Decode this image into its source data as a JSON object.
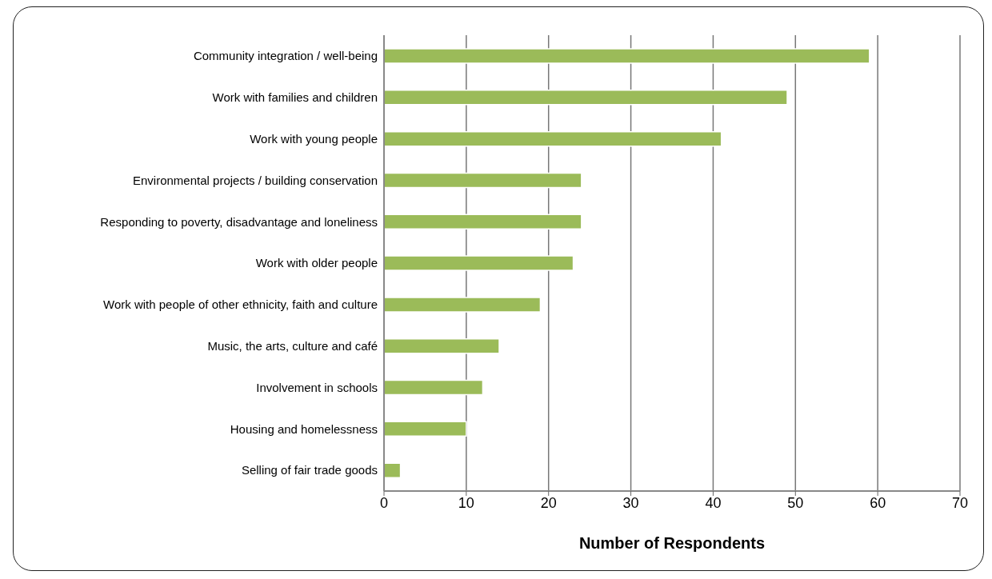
{
  "chart_data": {
    "type": "bar",
    "orientation": "horizontal",
    "xlabel": "Number of Respondents",
    "categories": [
      "Community integration / well-being",
      "Work with families and children",
      "Work with young people",
      "Environmental projects / building conservation",
      "Responding to poverty, disadvantage and loneliness",
      "Work with older people",
      "Work with people of other ethnicity, faith and culture",
      "Music, the arts, culture and café",
      "Involvement in schools",
      "Housing and homelessness",
      "Selling of fair trade goods"
    ],
    "values": [
      59,
      49,
      41,
      24,
      24,
      23,
      19,
      14,
      12,
      10,
      2
    ],
    "color": "#9bbb59",
    "xlim": [
      0,
      70
    ],
    "xticks": [
      0,
      10,
      20,
      30,
      40,
      50,
      60,
      70
    ],
    "grid": "x",
    "legend": false
  }
}
